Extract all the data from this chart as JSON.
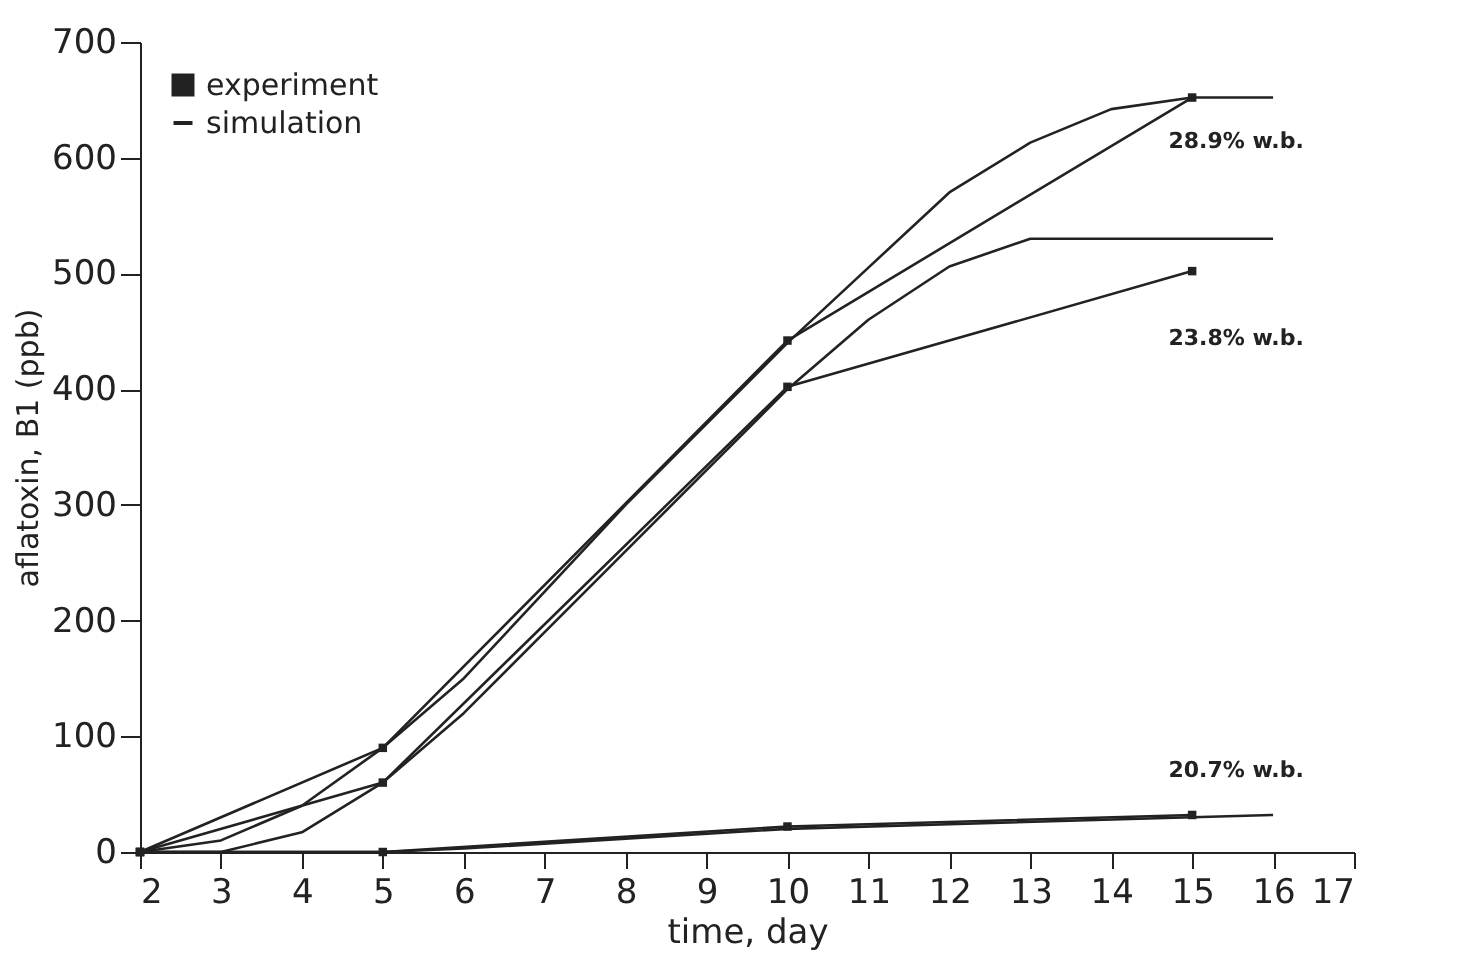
{
  "chart_data": {
    "type": "line",
    "xlabel": "time, day",
    "ylabel": "aflatoxin, B1 (ppb)",
    "xlim": [
      2,
      17
    ],
    "xticks": [
      2,
      3,
      4,
      5,
      6,
      7,
      8,
      9,
      10,
      11,
      12,
      13,
      14,
      15,
      16,
      17
    ],
    "ylim": [
      0,
      700
    ],
    "yticks": [
      0,
      100,
      200,
      300,
      400,
      500,
      600,
      700
    ],
    "legend": "top left",
    "grid": false,
    "series": [
      {
        "name": "experiment",
        "color": "#222222",
        "marker": "square",
        "x": [
          2,
          5,
          10,
          15
        ],
        "values": [
          0,
          90,
          442,
          652
        ]
      },
      {
        "color": "#222222",
        "marker": "square",
        "x": [
          2,
          5,
          10,
          15
        ],
        "values": [
          0,
          60,
          402,
          502
        ]
      },
      {
        "color": "#222222",
        "marker": "square",
        "x": [
          2,
          5,
          10,
          15
        ],
        "values": [
          0,
          0,
          22,
          32
        ]
      },
      {
        "name": "simulation",
        "color": "#222222",
        "marker": "none",
        "x": [
          2,
          3,
          4,
          5,
          6,
          7,
          8,
          9,
          10,
          11,
          12,
          13,
          14,
          15,
          16
        ],
        "values": [
          0,
          10,
          40,
          90,
          150,
          225,
          300,
          370,
          440,
          505,
          570,
          613,
          642,
          652,
          652
        ]
      },
      {
        "color": "#222222",
        "marker": "none",
        "x": [
          2,
          3,
          4,
          5,
          6,
          7,
          8,
          9,
          10,
          11,
          12,
          13,
          14,
          15,
          16
        ],
        "values": [
          0,
          0,
          17,
          60,
          120,
          190,
          260,
          330,
          400,
          460,
          506,
          530,
          530,
          530,
          530
        ]
      },
      {
        "color": "#222222",
        "marker": "none",
        "x": [
          2,
          5,
          6,
          10,
          15,
          16
        ],
        "values": [
          0,
          0,
          3,
          20,
          30,
          32
        ]
      }
    ],
    "annotations": [
      "28.9% w.b.",
      "23.8% w.b.",
      "20.7% w.b."
    ]
  }
}
